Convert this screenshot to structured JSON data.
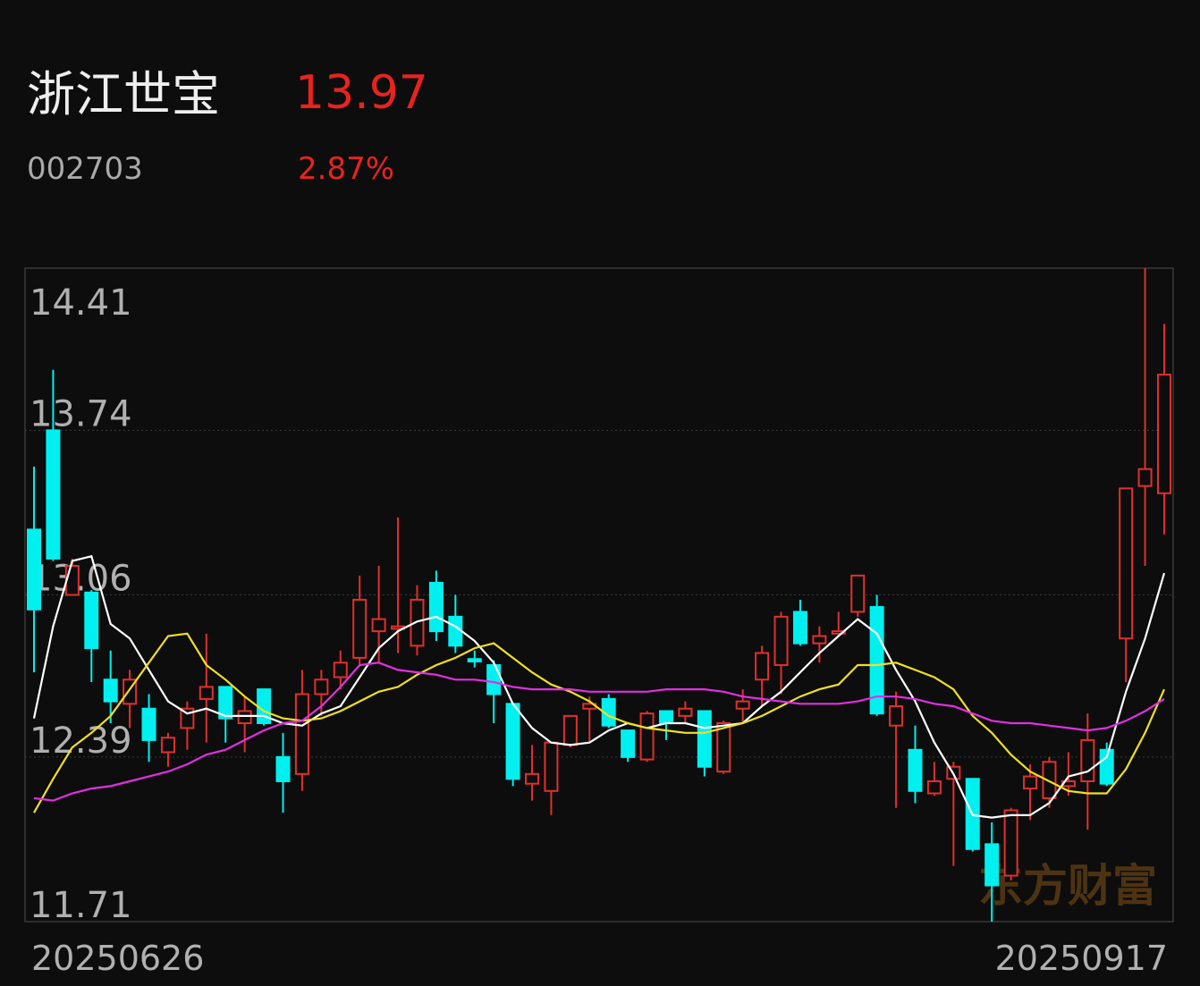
{
  "header": {
    "name": "浙江世宝",
    "price": "13.97",
    "code": "002703",
    "change": "2.87%"
  },
  "chart_data": {
    "type": "candlestick",
    "watermark": "东方财富",
    "up_color": "#e0302c",
    "down_color": "#00f0f0",
    "categories": [
      "20250626",
      null,
      null,
      null,
      null,
      null,
      null,
      null,
      null,
      null,
      null,
      null,
      null,
      null,
      null,
      null,
      null,
      null,
      null,
      null,
      null,
      null,
      null,
      null,
      null,
      null,
      null,
      null,
      null,
      null,
      null,
      null,
      null,
      null,
      null,
      null,
      null,
      null,
      null,
      null,
      null,
      null,
      null,
      null,
      null,
      null,
      null,
      null,
      null,
      null,
      null,
      null,
      null,
      null,
      null,
      null,
      null,
      null,
      null,
      "20250917"
    ],
    "open": [
      13.33,
      13.74,
      13.06,
      13.07,
      12.71,
      12.61,
      12.59,
      12.41,
      12.51,
      12.63,
      12.68,
      12.53,
      12.67,
      12.39,
      12.32,
      12.65,
      12.72,
      12.8,
      12.91,
      12.92,
      12.85,
      13.11,
      12.97,
      12.795,
      12.77,
      12.61,
      12.28,
      12.25,
      12.44,
      12.59,
      12.63,
      12.5,
      12.38,
      12.58,
      12.56,
      12.58,
      12.33,
      12.59,
      12.71,
      12.77,
      12.99,
      12.86,
      12.9,
      12.99,
      13.01,
      12.52,
      12.42,
      12.24,
      12.3,
      12.3,
      12.03,
      11.9,
      12.26,
      12.22,
      12.27,
      12.29,
      12.42,
      12.88,
      13.51,
      13.48
    ],
    "high": [
      13.59,
      13.99,
      13.21,
      13.08,
      12.83,
      12.75,
      12.65,
      12.49,
      12.62,
      12.9,
      12.68,
      12.64,
      12.67,
      12.49,
      12.75,
      12.75,
      12.83,
      13.14,
      13.18,
      13.38,
      13.1,
      13.16,
      13.06,
      12.83,
      12.79,
      12.61,
      12.44,
      12.45,
      12.56,
      12.64,
      12.65,
      12.5,
      12.58,
      12.58,
      12.62,
      12.58,
      12.54,
      12.67,
      12.85,
      12.99,
      13.04,
      12.93,
      12.99,
      13.14,
      13.06,
      12.66,
      12.52,
      12.37,
      12.37,
      12.3,
      12.12,
      12.18,
      12.36,
      12.39,
      12.41,
      12.57,
      12.45,
      13.5,
      14.41,
      14.18
    ],
    "low": [
      12.74,
      13.2,
      13.06,
      12.7,
      12.53,
      12.51,
      12.37,
      12.35,
      12.42,
      12.45,
      12.45,
      12.41,
      12.52,
      12.16,
      12.25,
      12.56,
      12.67,
      12.77,
      12.78,
      12.82,
      12.81,
      12.87,
      12.82,
      12.76,
      12.53,
      12.27,
      12.21,
      12.15,
      12.43,
      12.45,
      12.51,
      12.37,
      12.37,
      12.46,
      12.53,
      12.31,
      12.32,
      12.53,
      12.6,
      12.65,
      12.85,
      12.78,
      12.89,
      12.97,
      12.56,
      12.18,
      12.2,
      12.23,
      11.94,
      12.0,
      11.71,
      11.88,
      12.13,
      12.18,
      12.23,
      12.09,
      12.27,
      12.7,
      13.18,
      13.31
    ],
    "close": [
      13.0,
      13.21,
      13.18,
      12.84,
      12.62,
      12.71,
      12.46,
      12.47,
      12.59,
      12.68,
      12.55,
      12.58,
      12.53,
      12.29,
      12.65,
      12.71,
      12.78,
      13.04,
      12.96,
      12.93,
      13.04,
      12.91,
      12.85,
      12.785,
      12.65,
      12.3,
      12.32,
      12.45,
      12.56,
      12.61,
      12.52,
      12.39,
      12.57,
      12.53,
      12.59,
      12.35,
      12.53,
      12.62,
      12.82,
      12.97,
      12.86,
      12.89,
      12.91,
      13.14,
      12.57,
      12.6,
      12.25,
      12.29,
      12.35,
      12.01,
      11.86,
      12.17,
      12.31,
      12.37,
      12.29,
      12.46,
      12.28,
      13.5,
      13.58,
      13.97
    ],
    "lines": [
      {
        "color": "#ffffff",
        "values": [
          12.55,
          12.93,
          13.2,
          13.22,
          12.94,
          12.88,
          12.75,
          12.62,
          12.57,
          12.59,
          12.56,
          12.56,
          12.56,
          12.53,
          12.52,
          12.57,
          12.6,
          12.72,
          12.84,
          12.91,
          12.95,
          12.97,
          12.93,
          12.87,
          12.78,
          12.61,
          12.51,
          12.45,
          12.44,
          12.45,
          12.5,
          12.53,
          12.51,
          12.53,
          12.53,
          12.51,
          12.52,
          12.53,
          12.6,
          12.66,
          12.74,
          12.82,
          12.89,
          12.96,
          12.9,
          12.75,
          12.62,
          12.45,
          12.32,
          12.15,
          12.14,
          12.15,
          12.15,
          12.2,
          12.31,
          12.33,
          12.39,
          12.66,
          12.88,
          13.15
        ]
      },
      {
        "color": "#f0e020",
        "values": [
          12.16,
          12.3,
          12.43,
          12.49,
          12.56,
          12.67,
          12.78,
          12.89,
          12.9,
          12.77,
          12.71,
          12.64,
          12.58,
          12.55,
          12.54,
          12.55,
          12.58,
          12.62,
          12.66,
          12.68,
          12.73,
          12.77,
          12.8,
          12.84,
          12.86,
          12.8,
          12.74,
          12.69,
          12.66,
          12.62,
          12.56,
          12.53,
          12.51,
          12.5,
          12.49,
          12.49,
          12.51,
          12.53,
          12.56,
          12.6,
          12.64,
          12.67,
          12.69,
          12.77,
          12.77,
          12.78,
          12.75,
          12.72,
          12.67,
          12.56,
          12.49,
          12.4,
          12.33,
          12.29,
          12.25,
          12.24,
          12.24,
          12.34,
          12.49,
          12.67
        ]
      },
      {
        "color": "#e030e0",
        "values": [
          12.22,
          12.21,
          12.24,
          12.26,
          12.27,
          12.29,
          12.31,
          12.33,
          12.36,
          12.4,
          12.42,
          12.46,
          12.5,
          12.53,
          12.54,
          12.6,
          12.68,
          12.77,
          12.78,
          12.75,
          12.74,
          12.73,
          12.71,
          12.71,
          12.7,
          12.68,
          12.67,
          12.67,
          12.67,
          12.66,
          12.66,
          12.66,
          12.66,
          12.67,
          12.67,
          12.67,
          12.66,
          12.64,
          12.63,
          12.62,
          12.61,
          12.61,
          12.61,
          12.62,
          12.64,
          12.64,
          12.63,
          12.61,
          12.6,
          12.57,
          12.54,
          12.53,
          12.53,
          12.52,
          12.51,
          12.5,
          12.51,
          12.54,
          12.58,
          12.63
        ]
      }
    ],
    "ylim": [
      11.71,
      14.41
    ],
    "yticks": [
      14.41,
      13.74,
      13.06,
      12.39,
      11.71
    ],
    "grid": true
  }
}
